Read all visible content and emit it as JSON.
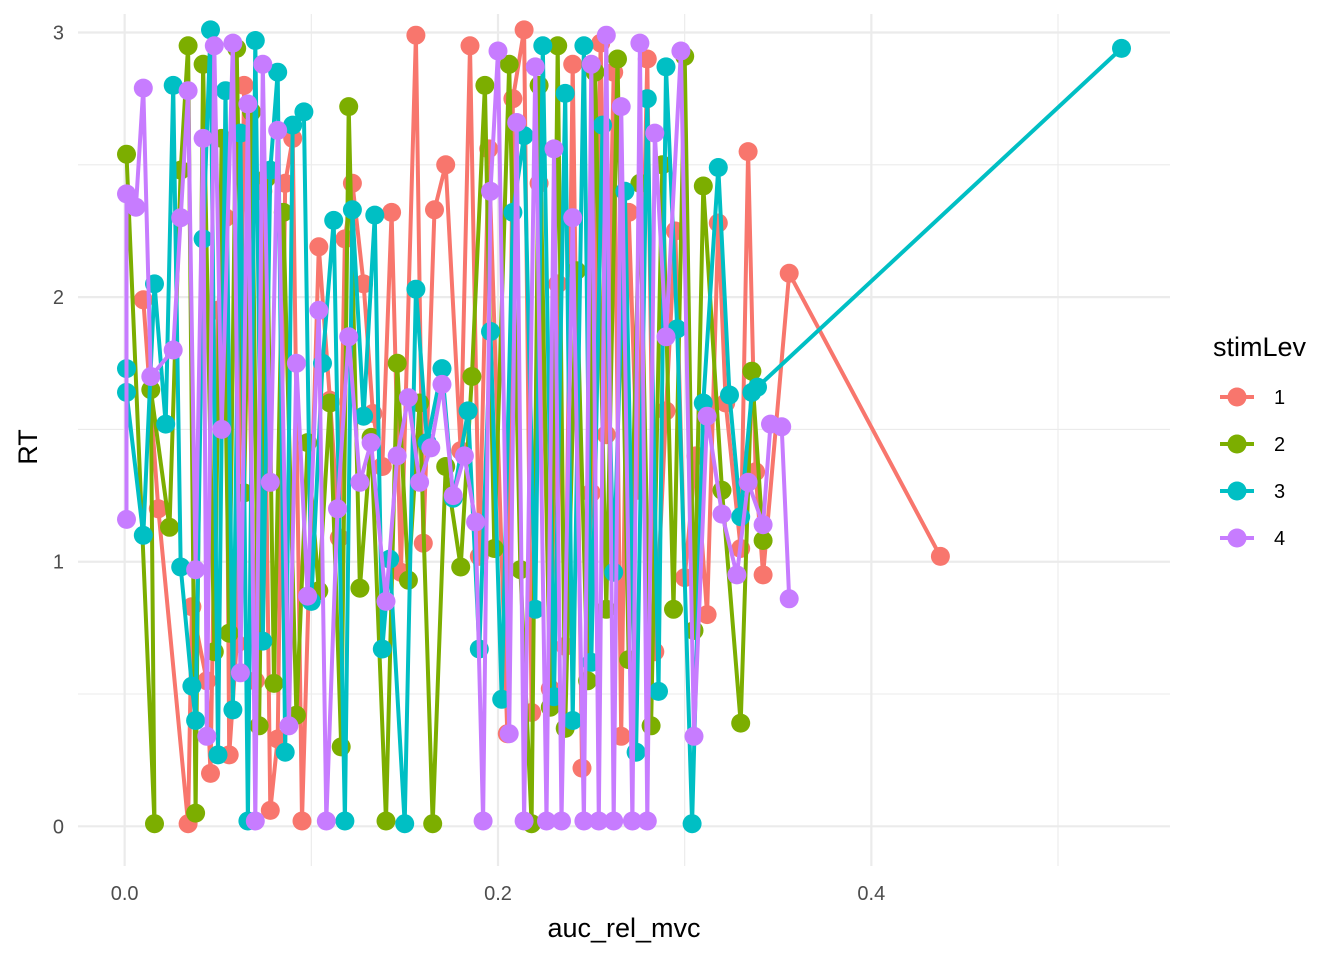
{
  "chart_data": {
    "type": "line",
    "xlabel": "auc_rel_mvc",
    "ylabel": "RT",
    "xlim": [
      -0.025,
      0.56
    ],
    "ylim": [
      -0.15,
      3.07
    ],
    "x_ticks": [
      0.0,
      0.2,
      0.4
    ],
    "x_tick_labels": [
      "0.0",
      "0.2",
      "0.4"
    ],
    "y_ticks": [
      0,
      1,
      2,
      3
    ],
    "y_tick_labels": [
      "0",
      "1",
      "2",
      "3"
    ],
    "grid": true,
    "markers": true,
    "legend": {
      "title": "stimLev",
      "position": "right"
    },
    "series": [
      {
        "name": "1",
        "color": "#F8766D",
        "points": [
          [
            0.01,
            1.99
          ],
          [
            0.018,
            1.2
          ],
          [
            0.034,
            0.01
          ],
          [
            0.036,
            0.83
          ],
          [
            0.044,
            0.55
          ],
          [
            0.046,
            0.2
          ],
          [
            0.05,
            1.95
          ],
          [
            0.054,
            2.3
          ],
          [
            0.056,
            0.27
          ],
          [
            0.06,
            0.69
          ],
          [
            0.064,
            2.8
          ],
          [
            0.07,
            0.55
          ],
          [
            0.074,
            2.4
          ],
          [
            0.078,
            0.06
          ],
          [
            0.082,
            0.33
          ],
          [
            0.086,
            2.43
          ],
          [
            0.09,
            2.6
          ],
          [
            0.095,
            0.02
          ],
          [
            0.104,
            2.19
          ],
          [
            0.11,
            1.61
          ],
          [
            0.115,
            1.09
          ],
          [
            0.118,
            2.22
          ],
          [
            0.122,
            2.43
          ],
          [
            0.128,
            2.05
          ],
          [
            0.133,
            1.56
          ],
          [
            0.138,
            1.36
          ],
          [
            0.143,
            2.32
          ],
          [
            0.148,
            0.96
          ],
          [
            0.156,
            2.99
          ],
          [
            0.16,
            1.07
          ],
          [
            0.166,
            2.33
          ],
          [
            0.172,
            2.5
          ],
          [
            0.18,
            1.42
          ],
          [
            0.185,
            2.95
          ],
          [
            0.19,
            1.02
          ],
          [
            0.195,
            2.56
          ],
          [
            0.205,
            0.35
          ],
          [
            0.208,
            2.75
          ],
          [
            0.214,
            3.01
          ],
          [
            0.218,
            0.43
          ],
          [
            0.222,
            2.43
          ],
          [
            0.228,
            0.52
          ],
          [
            0.232,
            2.05
          ],
          [
            0.236,
            0.68
          ],
          [
            0.24,
            2.88
          ],
          [
            0.245,
            0.22
          ],
          [
            0.25,
            1.26
          ],
          [
            0.255,
            2.96
          ],
          [
            0.258,
            1.48
          ],
          [
            0.262,
            2.85
          ],
          [
            0.266,
            0.34
          ],
          [
            0.27,
            2.32
          ],
          [
            0.275,
            1.27
          ],
          [
            0.28,
            2.9
          ],
          [
            0.284,
            0.66
          ],
          [
            0.29,
            1.57
          ],
          [
            0.295,
            2.25
          ],
          [
            0.3,
            0.94
          ],
          [
            0.306,
            1.4
          ],
          [
            0.312,
            0.8
          ],
          [
            0.318,
            2.28
          ],
          [
            0.322,
            1.6
          ],
          [
            0.33,
            1.05
          ],
          [
            0.334,
            2.55
          ],
          [
            0.338,
            1.34
          ],
          [
            0.342,
            0.95
          ],
          [
            0.356,
            2.09
          ],
          [
            0.437,
            1.02
          ]
        ]
      },
      {
        "name": "2",
        "color": "#7CAE00",
        "points": [
          [
            0.001,
            2.54
          ],
          [
            0.016,
            0.01
          ],
          [
            0.014,
            1.65
          ],
          [
            0.024,
            1.13
          ],
          [
            0.03,
            2.48
          ],
          [
            0.034,
            2.95
          ],
          [
            0.038,
            0.05
          ],
          [
            0.042,
            2.88
          ],
          [
            0.048,
            0.66
          ],
          [
            0.052,
            2.6
          ],
          [
            0.056,
            0.73
          ],
          [
            0.06,
            2.94
          ],
          [
            0.064,
            1.26
          ],
          [
            0.068,
            2.7
          ],
          [
            0.072,
            0.38
          ],
          [
            0.076,
            2.45
          ],
          [
            0.08,
            0.54
          ],
          [
            0.085,
            2.32
          ],
          [
            0.092,
            0.42
          ],
          [
            0.098,
            1.45
          ],
          [
            0.104,
            0.89
          ],
          [
            0.11,
            1.6
          ],
          [
            0.116,
            0.3
          ],
          [
            0.12,
            2.72
          ],
          [
            0.126,
            0.9
          ],
          [
            0.132,
            1.47
          ],
          [
            0.14,
            0.02
          ],
          [
            0.146,
            1.75
          ],
          [
            0.152,
            0.93
          ],
          [
            0.158,
            1.6
          ],
          [
            0.165,
            0.01
          ],
          [
            0.172,
            1.36
          ],
          [
            0.18,
            0.98
          ],
          [
            0.186,
            1.7
          ],
          [
            0.193,
            2.8
          ],
          [
            0.198,
            1.05
          ],
          [
            0.206,
            2.88
          ],
          [
            0.212,
            0.97
          ],
          [
            0.218,
            0.01
          ],
          [
            0.222,
            2.8
          ],
          [
            0.228,
            0.45
          ],
          [
            0.232,
            2.95
          ],
          [
            0.236,
            0.37
          ],
          [
            0.242,
            2.1
          ],
          [
            0.248,
            0.55
          ],
          [
            0.252,
            2.85
          ],
          [
            0.258,
            0.82
          ],
          [
            0.264,
            2.9
          ],
          [
            0.27,
            0.63
          ],
          [
            0.276,
            2.43
          ],
          [
            0.282,
            0.38
          ],
          [
            0.288,
            2.5
          ],
          [
            0.294,
            0.82
          ],
          [
            0.3,
            2.91
          ],
          [
            0.305,
            0.74
          ],
          [
            0.31,
            2.42
          ],
          [
            0.32,
            1.27
          ],
          [
            0.33,
            0.39
          ],
          [
            0.336,
            1.72
          ],
          [
            0.342,
            1.08
          ]
        ]
      },
      {
        "name": "3",
        "color": "#00BFC4",
        "points": [
          [
            0.001,
            1.73
          ],
          [
            0.001,
            1.64
          ],
          [
            0.01,
            1.1
          ],
          [
            0.016,
            2.05
          ],
          [
            0.022,
            1.52
          ],
          [
            0.026,
            2.8
          ],
          [
            0.03,
            0.98
          ],
          [
            0.036,
            0.53
          ],
          [
            0.038,
            0.4
          ],
          [
            0.042,
            2.22
          ],
          [
            0.046,
            3.01
          ],
          [
            0.05,
            0.27
          ],
          [
            0.054,
            2.78
          ],
          [
            0.058,
            0.44
          ],
          [
            0.062,
            2.62
          ],
          [
            0.066,
            0.02
          ],
          [
            0.07,
            2.97
          ],
          [
            0.074,
            0.7
          ],
          [
            0.078,
            2.48
          ],
          [
            0.082,
            2.85
          ],
          [
            0.086,
            0.28
          ],
          [
            0.09,
            2.65
          ],
          [
            0.096,
            2.7
          ],
          [
            0.1,
            0.85
          ],
          [
            0.106,
            1.75
          ],
          [
            0.112,
            2.29
          ],
          [
            0.118,
            0.02
          ],
          [
            0.122,
            2.33
          ],
          [
            0.128,
            1.55
          ],
          [
            0.134,
            2.31
          ],
          [
            0.138,
            0.67
          ],
          [
            0.142,
            1.01
          ],
          [
            0.15,
            0.01
          ],
          [
            0.156,
            2.03
          ],
          [
            0.162,
            1.45
          ],
          [
            0.17,
            1.73
          ],
          [
            0.176,
            1.24
          ],
          [
            0.184,
            1.57
          ],
          [
            0.19,
            0.67
          ],
          [
            0.196,
            1.87
          ],
          [
            0.202,
            0.48
          ],
          [
            0.208,
            2.32
          ],
          [
            0.214,
            2.61
          ],
          [
            0.22,
            0.82
          ],
          [
            0.224,
            2.95
          ],
          [
            0.23,
            0.49
          ],
          [
            0.236,
            2.77
          ],
          [
            0.24,
            0.4
          ],
          [
            0.246,
            2.95
          ],
          [
            0.25,
            0.62
          ],
          [
            0.256,
            2.65
          ],
          [
            0.262,
            0.96
          ],
          [
            0.268,
            2.4
          ],
          [
            0.274,
            0.28
          ],
          [
            0.28,
            2.75
          ],
          [
            0.286,
            0.51
          ],
          [
            0.29,
            2.87
          ],
          [
            0.296,
            1.88
          ],
          [
            0.304,
            0.01
          ],
          [
            0.31,
            1.6
          ],
          [
            0.318,
            2.49
          ],
          [
            0.324,
            1.63
          ],
          [
            0.33,
            1.17
          ],
          [
            0.336,
            1.64
          ],
          [
            0.339,
            1.66
          ],
          [
            0.534,
            2.94
          ]
        ]
      },
      {
        "name": "4",
        "color": "#C77CFF",
        "points": [
          [
            0.001,
            1.16
          ],
          [
            0.001,
            2.39
          ],
          [
            0.006,
            2.34
          ],
          [
            0.01,
            2.79
          ],
          [
            0.014,
            1.7
          ],
          [
            0.026,
            1.8
          ],
          [
            0.03,
            2.3
          ],
          [
            0.034,
            2.78
          ],
          [
            0.038,
            0.97
          ],
          [
            0.042,
            2.6
          ],
          [
            0.044,
            0.34
          ],
          [
            0.048,
            2.95
          ],
          [
            0.052,
            1.5
          ],
          [
            0.058,
            2.96
          ],
          [
            0.062,
            0.58
          ],
          [
            0.066,
            2.73
          ],
          [
            0.07,
            0.02
          ],
          [
            0.074,
            2.88
          ],
          [
            0.078,
            1.3
          ],
          [
            0.082,
            2.63
          ],
          [
            0.088,
            0.38
          ],
          [
            0.092,
            1.75
          ],
          [
            0.098,
            0.87
          ],
          [
            0.104,
            1.95
          ],
          [
            0.108,
            0.02
          ],
          [
            0.114,
            1.2
          ],
          [
            0.12,
            1.85
          ],
          [
            0.126,
            1.3
          ],
          [
            0.132,
            1.45
          ],
          [
            0.14,
            0.85
          ],
          [
            0.146,
            1.4
          ],
          [
            0.152,
            1.62
          ],
          [
            0.158,
            1.3
          ],
          [
            0.164,
            1.43
          ],
          [
            0.17,
            1.67
          ],
          [
            0.176,
            1.25
          ],
          [
            0.182,
            1.4
          ],
          [
            0.188,
            1.15
          ],
          [
            0.192,
            0.02
          ],
          [
            0.196,
            2.4
          ],
          [
            0.2,
            2.93
          ],
          [
            0.206,
            0.35
          ],
          [
            0.21,
            2.66
          ],
          [
            0.214,
            0.02
          ],
          [
            0.22,
            2.87
          ],
          [
            0.226,
            0.02
          ],
          [
            0.23,
            2.56
          ],
          [
            0.234,
            0.02
          ],
          [
            0.24,
            2.3
          ],
          [
            0.246,
            0.02
          ],
          [
            0.25,
            2.88
          ],
          [
            0.254,
            0.02
          ],
          [
            0.258,
            2.99
          ],
          [
            0.262,
            0.02
          ],
          [
            0.266,
            2.72
          ],
          [
            0.272,
            0.02
          ],
          [
            0.276,
            2.96
          ],
          [
            0.28,
            0.02
          ],
          [
            0.284,
            2.62
          ],
          [
            0.29,
            1.85
          ],
          [
            0.298,
            2.93
          ],
          [
            0.305,
            0.34
          ],
          [
            0.312,
            1.55
          ],
          [
            0.32,
            1.18
          ],
          [
            0.328,
            0.95
          ],
          [
            0.334,
            1.3
          ],
          [
            0.342,
            1.14
          ],
          [
            0.346,
            1.52
          ],
          [
            0.352,
            1.51
          ],
          [
            0.356,
            0.86
          ]
        ]
      }
    ]
  }
}
